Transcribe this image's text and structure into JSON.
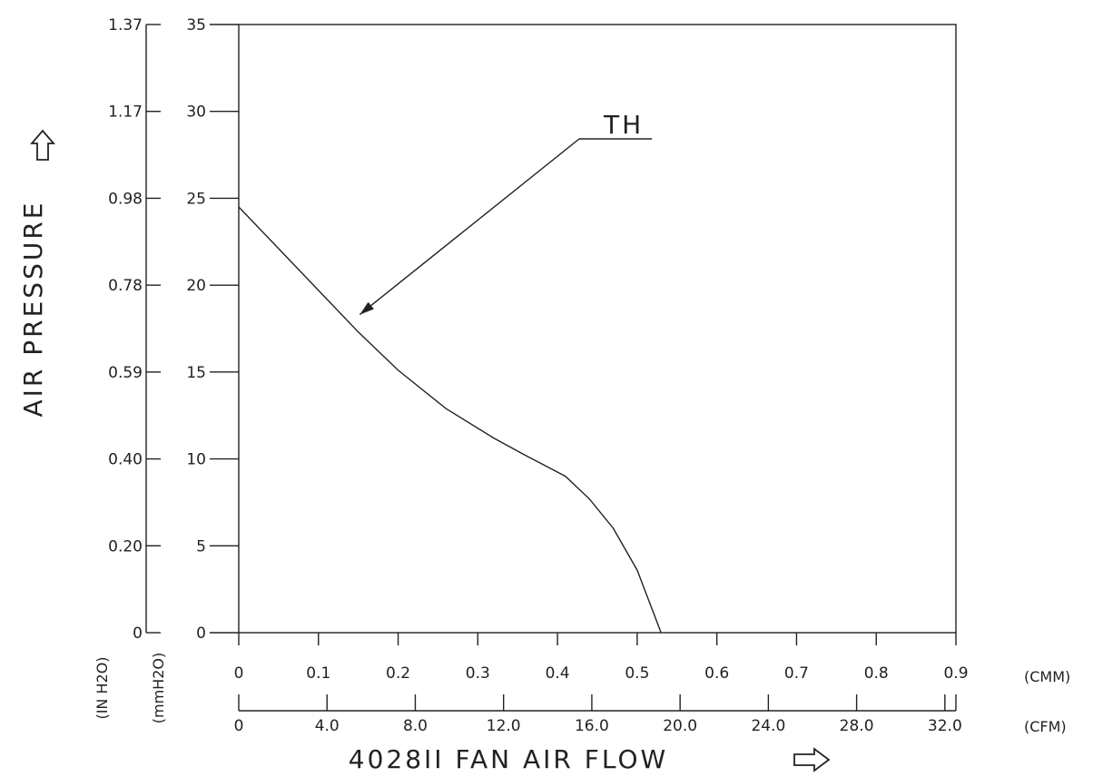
{
  "chart_data": {
    "type": "line",
    "title": "",
    "xlabel": "4028II FAN AIR FLOW",
    "ylabel": "AIR PRESSURE",
    "x_units": {
      "primary": "(CMM)",
      "secondary": "(CFM)"
    },
    "y_units": {
      "primary": "(mmH2O)",
      "secondary": "(IN H2O)"
    },
    "xlim": [
      0,
      0.9
    ],
    "ylim": [
      0,
      35
    ],
    "x_ticks": [
      "0",
      "0.1",
      "0.2",
      "0.3",
      "0.4",
      "0.5",
      "0.6",
      "0.7",
      "0.8",
      "0.9"
    ],
    "x2_ticks": [
      "0",
      "4.0",
      "8.0",
      "12.0",
      "16.0",
      "20.0",
      "24.0",
      "28.0",
      "32.0"
    ],
    "x2_tick_values": [
      0,
      4,
      8,
      12,
      16,
      20,
      24,
      28,
      32
    ],
    "x2_max": 32.5,
    "y_ticks": [
      "0",
      "5",
      "10",
      "15",
      "20",
      "25",
      "30",
      "35"
    ],
    "y2_ticks": [
      "0",
      "0.20",
      "0.40",
      "0.59",
      "0.78",
      "0.98",
      "1.17",
      "1.37"
    ],
    "grid": false,
    "series": [
      {
        "name": "TH",
        "x": [
          0.0,
          0.05,
          0.1,
          0.15,
          0.2,
          0.26,
          0.32,
          0.36,
          0.41,
          0.44,
          0.47,
          0.5,
          0.53
        ],
        "y": [
          24.5,
          22.1,
          19.7,
          17.3,
          15.1,
          12.9,
          11.2,
          10.2,
          9.0,
          7.7,
          6.0,
          3.6,
          0.0
        ]
      }
    ],
    "annotations": [
      {
        "text": "TH",
        "arrow_to": {
          "x": 0.145,
          "y": 18.2
        }
      }
    ]
  }
}
